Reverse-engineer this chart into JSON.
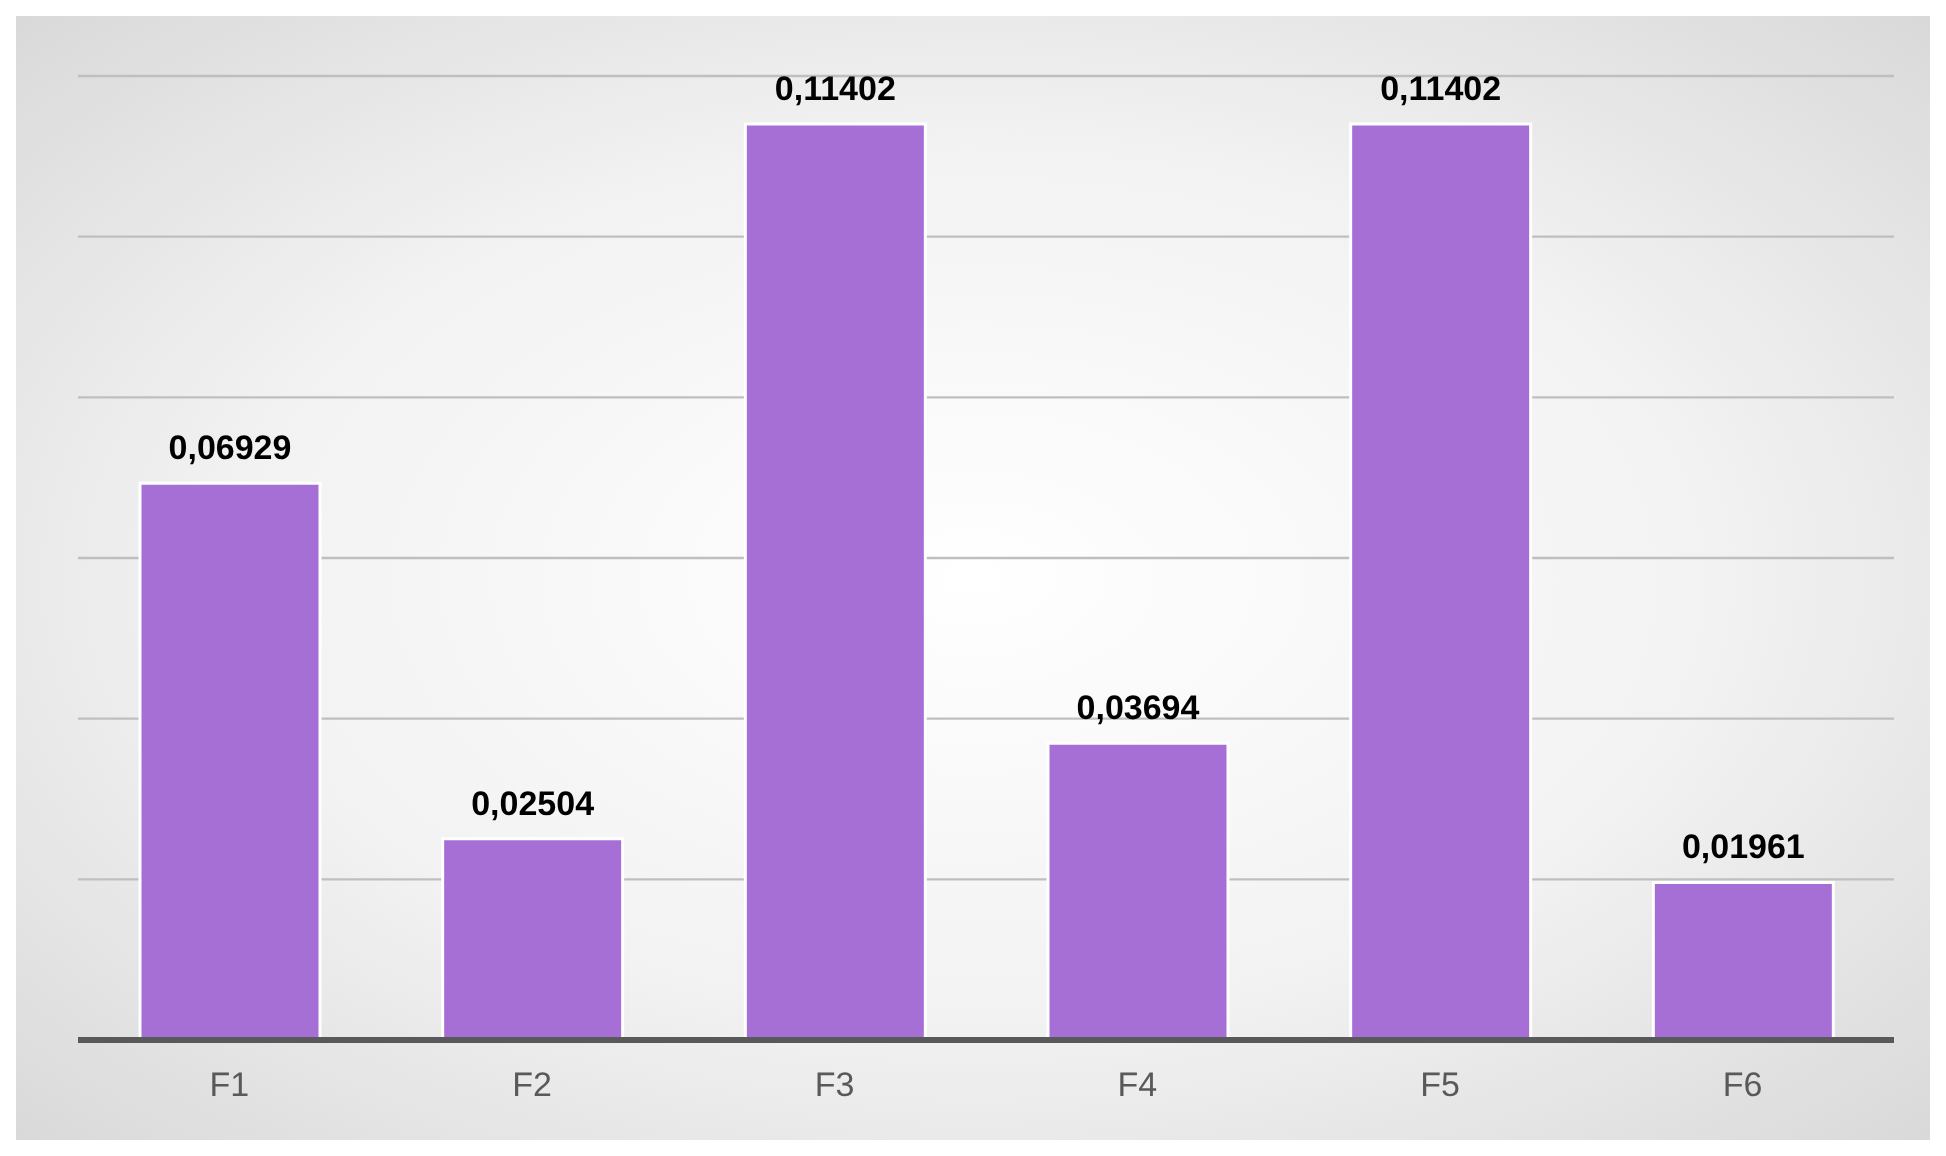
{
  "chart_data": {
    "type": "bar",
    "categories": [
      "F1",
      "F2",
      "F3",
      "F4",
      "F5",
      "F6"
    ],
    "values": [
      0.06929,
      0.02504,
      0.11402,
      0.03694,
      0.11402,
      0.01961
    ],
    "value_labels": [
      "0,06929",
      "0,02504",
      "0,11402",
      "0,03694",
      "0,11402",
      "0,01961"
    ],
    "color": "#a66fd6",
    "grid": "y",
    "tick_labels": "x",
    "legend": false
  }
}
